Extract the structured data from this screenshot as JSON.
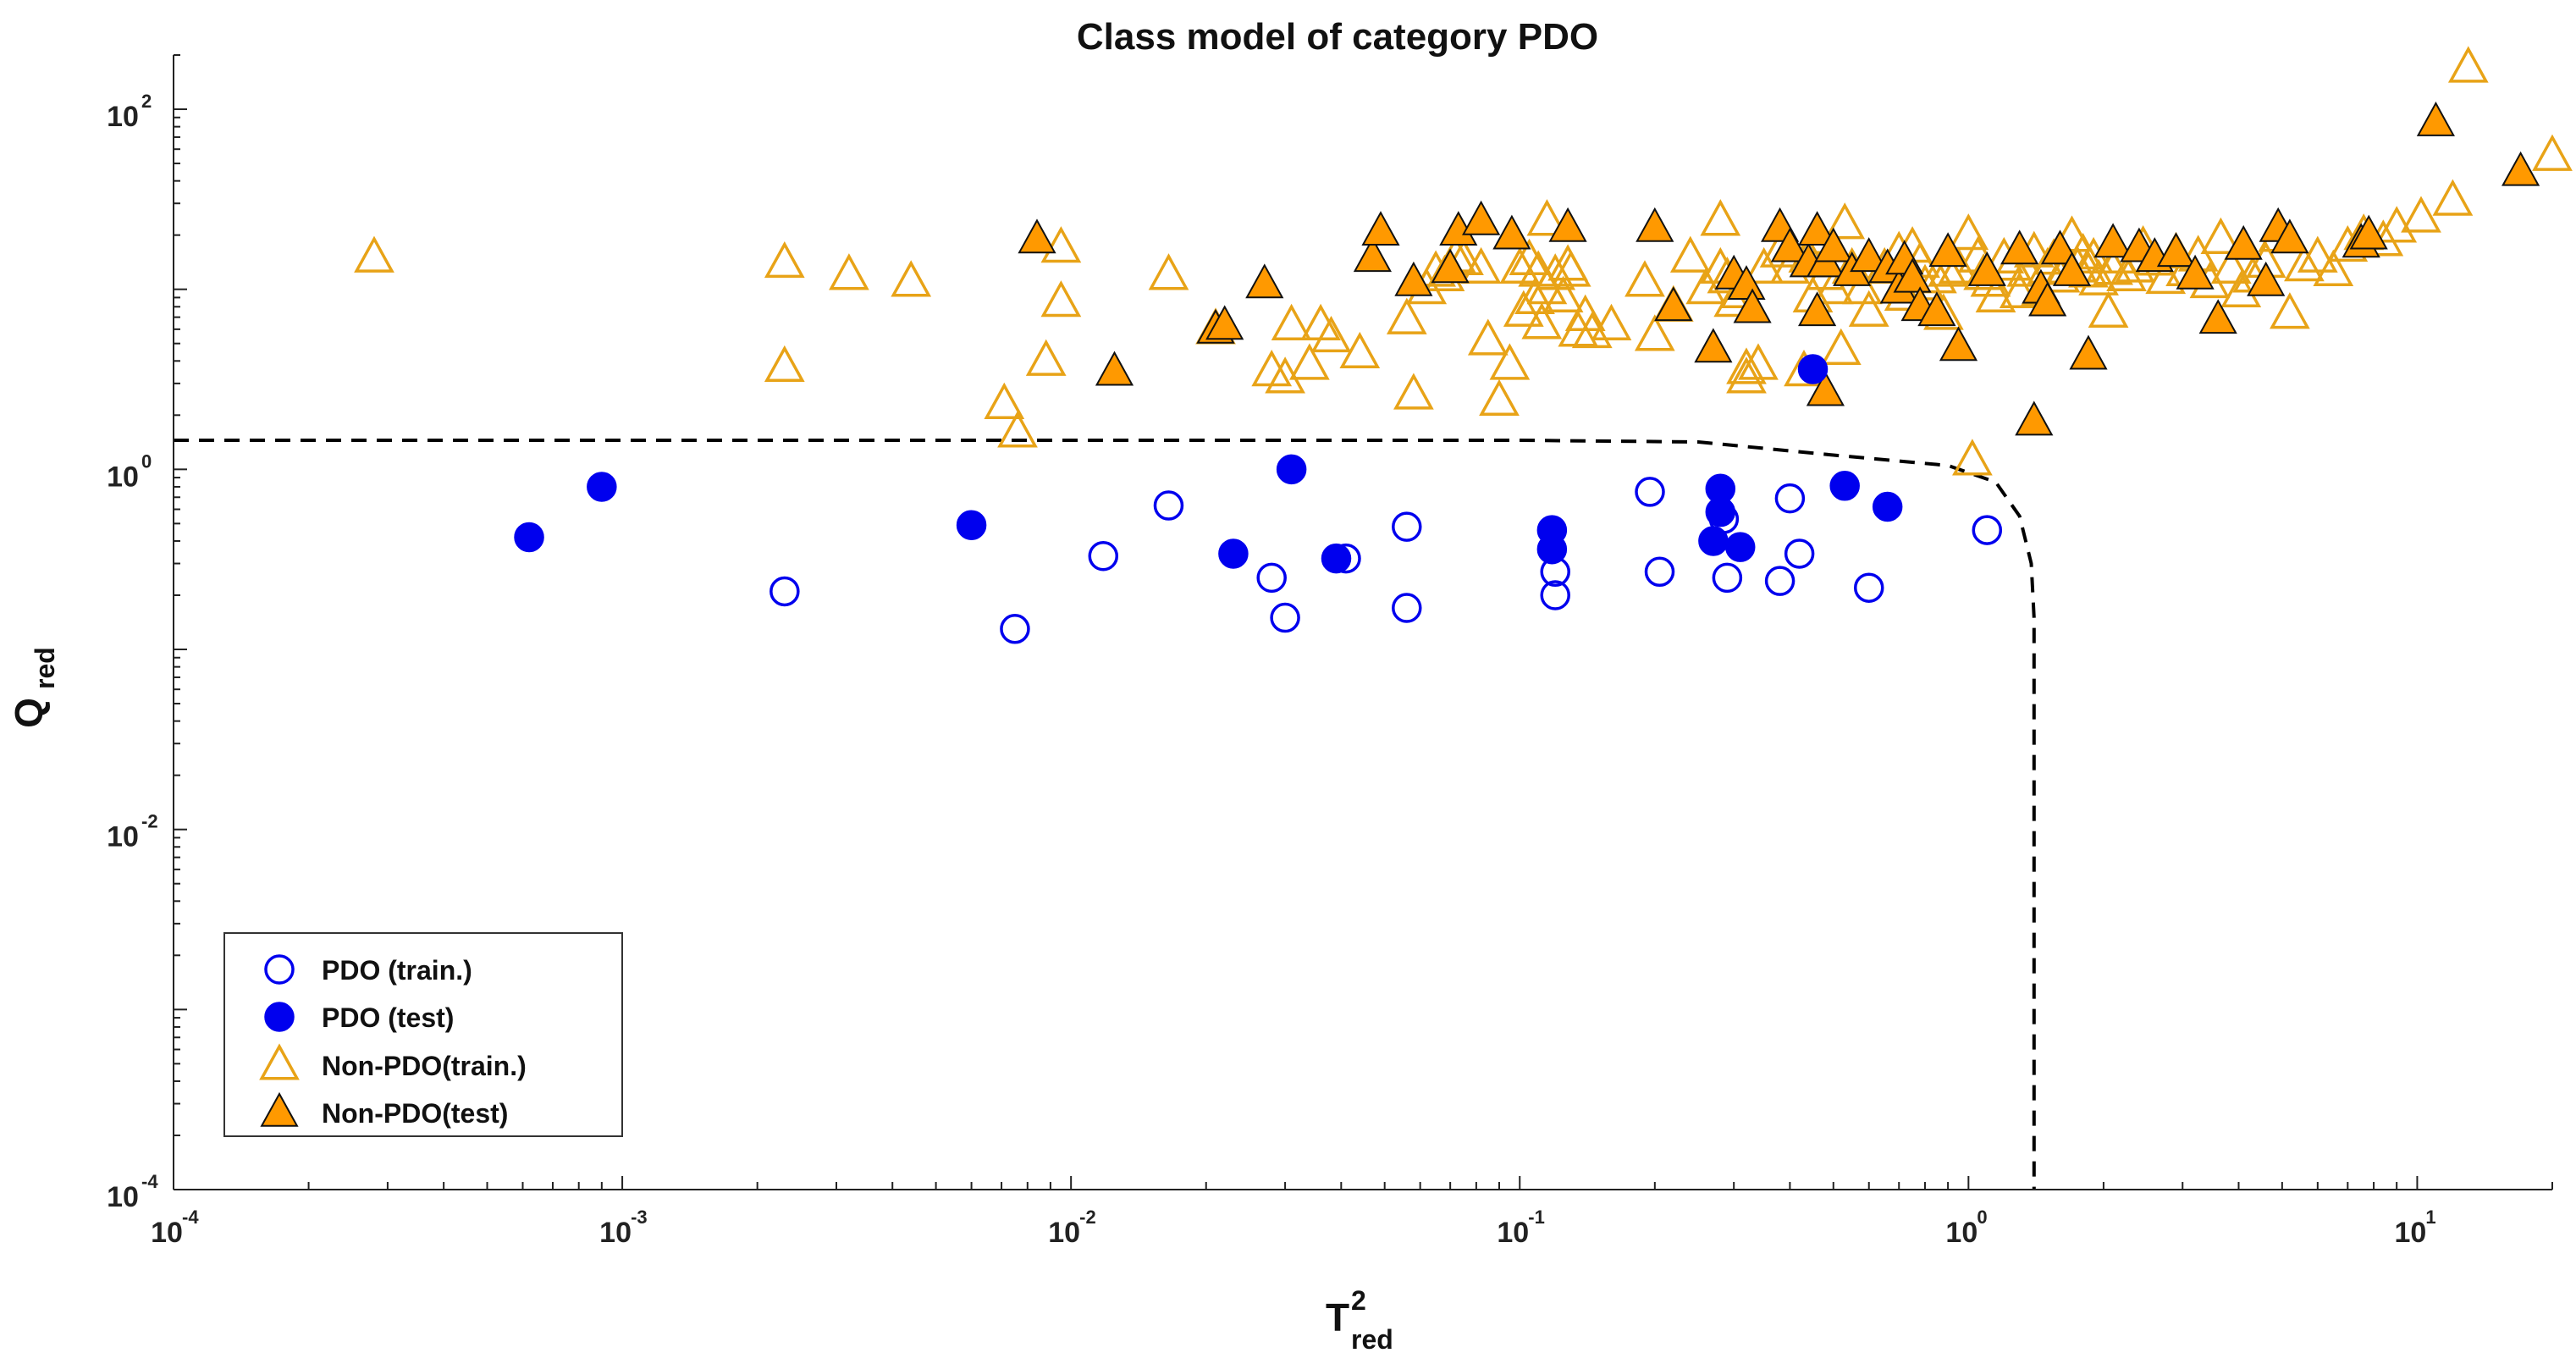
{
  "chart_data": {
    "type": "scatter",
    "title": "Class model of category PDO",
    "xlabel": {
      "main": "T",
      "sup": "2",
      "sub": "red"
    },
    "ylabel": {
      "main": "Q",
      "sub": "red"
    },
    "xscale": "log",
    "yscale": "log",
    "xlim": [
      0.0001,
      20
    ],
    "ylim": [
      0.0001,
      200
    ],
    "xticks": [
      {
        "base": "10",
        "exp": "-4",
        "v": 0.0001
      },
      {
        "base": "10",
        "exp": "-3",
        "v": 0.001
      },
      {
        "base": "10",
        "exp": "-2",
        "v": 0.01
      },
      {
        "base": "10",
        "exp": "-1",
        "v": 0.1
      },
      {
        "base": "10",
        "exp": "0",
        "v": 1
      },
      {
        "base": "10",
        "exp": "1",
        "v": 10
      }
    ],
    "yticks": [
      {
        "base": "10",
        "exp": "-4",
        "v": 0.0001
      },
      {
        "base": "10",
        "exp": "-2",
        "v": 0.01
      },
      {
        "base": "10",
        "exp": "0",
        "v": 1
      },
      {
        "base": "10",
        "exp": "2",
        "v": 100
      }
    ],
    "legend_position": "bottom-left",
    "colors": {
      "pdo": "#0000ee",
      "nonpdo": "#e8a317",
      "nonpdo_fill": "#ff9900",
      "boundary": "#000000"
    },
    "boundary": [
      [
        0.0001,
        1.45
      ],
      [
        0.1,
        1.45
      ],
      [
        0.25,
        1.42
      ],
      [
        0.5,
        1.2
      ],
      [
        0.9,
        1.05
      ],
      [
        1.15,
        0.85
      ],
      [
        1.3,
        0.55
      ],
      [
        1.38,
        0.3
      ],
      [
        1.4,
        0.15
      ],
      [
        1.4,
        0.0001
      ]
    ],
    "series": [
      {
        "name": "PDO (train.)",
        "marker": "circle",
        "filled": false,
        "points": [
          [
            0.0023,
            0.21
          ],
          [
            0.0075,
            0.13
          ],
          [
            0.0118,
            0.33
          ],
          [
            0.0165,
            0.63
          ],
          [
            0.028,
            0.25
          ],
          [
            0.03,
            0.15
          ],
          [
            0.041,
            0.32
          ],
          [
            0.056,
            0.17
          ],
          [
            0.056,
            0.48
          ],
          [
            0.12,
            0.27
          ],
          [
            0.12,
            0.2
          ],
          [
            0.205,
            0.27
          ],
          [
            0.195,
            0.75
          ],
          [
            0.285,
            0.53
          ],
          [
            0.29,
            0.25
          ],
          [
            0.38,
            0.24
          ],
          [
            0.4,
            0.69
          ],
          [
            0.42,
            0.34
          ],
          [
            0.6,
            0.22
          ],
          [
            1.1,
            0.46
          ]
        ]
      },
      {
        "name": "PDO (test)",
        "marker": "circle",
        "filled": true,
        "points": [
          [
            0.00062,
            0.42
          ],
          [
            0.0009,
            0.8
          ],
          [
            0.006,
            0.49
          ],
          [
            0.023,
            0.34
          ],
          [
            0.031,
            1.0
          ],
          [
            0.039,
            0.32
          ],
          [
            0.118,
            0.46
          ],
          [
            0.118,
            0.36
          ],
          [
            0.27,
            0.4
          ],
          [
            0.28,
            0.58
          ],
          [
            0.28,
            0.78
          ],
          [
            0.31,
            0.37
          ],
          [
            0.53,
            0.81
          ],
          [
            0.66,
            0.62
          ],
          [
            0.45,
            3.6
          ]
        ]
      },
      {
        "name": "Non-PDO(train.)",
        "marker": "triangle",
        "filled": false,
        "points": [
          [
            0.00028,
            15
          ],
          [
            0.0023,
            14
          ],
          [
            0.0023,
            3.7
          ],
          [
            0.0032,
            12
          ],
          [
            0.0044,
            11
          ],
          [
            0.0071,
            2.3
          ],
          [
            0.0076,
            1.6
          ],
          [
            0.0088,
            4
          ],
          [
            0.0095,
            8.5
          ],
          [
            0.0095,
            17
          ],
          [
            0.0165,
            12
          ],
          [
            0.021,
            6
          ],
          [
            0.028,
            3.5
          ],
          [
            0.03,
            3.2
          ],
          [
            0.031,
            6.3
          ],
          [
            0.034,
            3.8
          ],
          [
            0.036,
            6.3
          ],
          [
            0.038,
            5.4
          ],
          [
            0.044,
            4.4
          ],
          [
            0.056,
            6.8
          ],
          [
            0.058,
            2.6
          ],
          [
            0.062,
            10
          ],
          [
            0.065,
            12.5
          ],
          [
            0.068,
            11.8
          ],
          [
            0.072,
            15
          ],
          [
            0.075,
            14.5
          ],
          [
            0.082,
            13
          ],
          [
            0.085,
            5.2
          ],
          [
            0.09,
            2.4
          ],
          [
            0.095,
            3.8
          ],
          [
            0.1,
            13
          ],
          [
            0.102,
            7.5
          ],
          [
            0.105,
            14.5
          ],
          [
            0.108,
            8.8
          ],
          [
            0.11,
            12.5
          ],
          [
            0.112,
            6.4
          ],
          [
            0.115,
            10
          ],
          [
            0.115,
            24
          ],
          [
            0.12,
            12
          ],
          [
            0.125,
            9
          ],
          [
            0.128,
            13.5
          ],
          [
            0.13,
            12.5
          ],
          [
            0.135,
            5.8
          ],
          [
            0.14,
            7.1
          ],
          [
            0.145,
            5.7
          ],
          [
            0.16,
            6.3
          ],
          [
            0.19,
            11
          ],
          [
            0.2,
            5.5
          ],
          [
            0.22,
            8
          ],
          [
            0.24,
            15
          ],
          [
            0.26,
            10
          ],
          [
            0.28,
            24
          ],
          [
            0.28,
            13
          ],
          [
            0.29,
            11.5
          ],
          [
            0.3,
            8.5
          ],
          [
            0.31,
            9.5
          ],
          [
            0.32,
            3.6
          ],
          [
            0.32,
            3.2
          ],
          [
            0.34,
            3.8
          ],
          [
            0.35,
            13
          ],
          [
            0.38,
            16
          ],
          [
            0.4,
            13
          ],
          [
            0.43,
            3.5
          ],
          [
            0.44,
            15
          ],
          [
            0.45,
            9
          ],
          [
            0.46,
            19
          ],
          [
            0.48,
            12
          ],
          [
            0.5,
            10
          ],
          [
            0.52,
            4.6
          ],
          [
            0.53,
            23
          ],
          [
            0.55,
            13
          ],
          [
            0.58,
            10
          ],
          [
            0.6,
            7.5
          ],
          [
            0.65,
            13
          ],
          [
            0.7,
            16
          ],
          [
            0.72,
            9.2
          ],
          [
            0.75,
            17
          ],
          [
            0.78,
            14
          ],
          [
            0.8,
            10.5
          ],
          [
            0.85,
            11.5
          ],
          [
            0.88,
            7.2
          ],
          [
            0.9,
            12.5
          ],
          [
            0.95,
            13
          ],
          [
            1.0,
            20
          ],
          [
            1.02,
            1.12
          ],
          [
            1.05,
            15
          ],
          [
            1.08,
            12
          ],
          [
            1.12,
            11
          ],
          [
            1.15,
            9
          ],
          [
            1.2,
            14.8
          ],
          [
            1.25,
            13.5
          ],
          [
            1.3,
            9.5
          ],
          [
            1.35,
            12.5
          ],
          [
            1.4,
            16
          ],
          [
            1.45,
            9.8
          ],
          [
            1.5,
            13
          ],
          [
            1.55,
            14.6
          ],
          [
            1.6,
            11.6
          ],
          [
            1.65,
            12.8
          ],
          [
            1.7,
            19.5
          ],
          [
            1.75,
            13.2
          ],
          [
            1.8,
            15.6
          ],
          [
            1.85,
            12.4
          ],
          [
            1.9,
            14.8
          ],
          [
            1.95,
            11.2
          ],
          [
            2.05,
            7.4
          ],
          [
            2.1,
            12.8
          ],
          [
            2.15,
            14.8
          ],
          [
            2.25,
            11.8
          ],
          [
            2.35,
            13.2
          ],
          [
            2.45,
            17.2
          ],
          [
            2.6,
            14.4
          ],
          [
            2.75,
            11.4
          ],
          [
            2.9,
            15.8
          ],
          [
            3.05,
            12.6
          ],
          [
            3.25,
            15.2
          ],
          [
            3.45,
            10.8
          ],
          [
            3.65,
            19
          ],
          [
            3.85,
            13
          ],
          [
            4.05,
            9.6
          ],
          [
            4.3,
            11.6
          ],
          [
            4.6,
            14
          ],
          [
            4.9,
            19.5
          ],
          [
            5.2,
            7.3
          ],
          [
            5.6,
            13.4
          ],
          [
            6.0,
            15
          ],
          [
            6.5,
            12.6
          ],
          [
            7.0,
            17.2
          ],
          [
            7.6,
            20
          ],
          [
            8.4,
            18.5
          ],
          [
            9.0,
            22
          ],
          [
            10.2,
            25
          ],
          [
            12.0,
            31
          ],
          [
            13.0,
            170
          ],
          [
            20.0,
            55
          ]
        ]
      },
      {
        "name": "Non-PDO(test)",
        "marker": "triangle",
        "filled": true,
        "points": [
          [
            0.0084,
            19
          ],
          [
            0.0125,
            3.5
          ],
          [
            0.021,
            6
          ],
          [
            0.022,
            6.3
          ],
          [
            0.027,
            10.7
          ],
          [
            0.047,
            15
          ],
          [
            0.049,
            21
          ],
          [
            0.058,
            11
          ],
          [
            0.07,
            13
          ],
          [
            0.073,
            21
          ],
          [
            0.082,
            24
          ],
          [
            0.096,
            20
          ],
          [
            0.128,
            22
          ],
          [
            0.2,
            22
          ],
          [
            0.22,
            8
          ],
          [
            0.27,
            4.7
          ],
          [
            0.3,
            12
          ],
          [
            0.32,
            10.5
          ],
          [
            0.33,
            7.8
          ],
          [
            0.38,
            22
          ],
          [
            0.4,
            17
          ],
          [
            0.44,
            14
          ],
          [
            0.46,
            21
          ],
          [
            0.48,
            14
          ],
          [
            0.46,
            7.5
          ],
          [
            0.48,
            2.7
          ],
          [
            0.5,
            17
          ],
          [
            0.55,
            12.5
          ],
          [
            0.6,
            15
          ],
          [
            0.66,
            13
          ],
          [
            0.7,
            10
          ],
          [
            0.72,
            14.5
          ],
          [
            0.75,
            11.5
          ],
          [
            0.78,
            8
          ],
          [
            0.85,
            7.5
          ],
          [
            0.9,
            16
          ],
          [
            0.95,
            4.8
          ],
          [
            1.1,
            12.5
          ],
          [
            1.3,
            16.5
          ],
          [
            1.4,
            1.85
          ],
          [
            1.45,
            10
          ],
          [
            1.5,
            8.5
          ],
          [
            1.6,
            16.5
          ],
          [
            1.7,
            12.5
          ],
          [
            1.85,
            4.3
          ],
          [
            2.1,
            18
          ],
          [
            2.4,
            17
          ],
          [
            2.6,
            15
          ],
          [
            2.9,
            16
          ],
          [
            3.2,
            12
          ],
          [
            3.6,
            6.8
          ],
          [
            4.1,
            17.5
          ],
          [
            4.6,
            11
          ],
          [
            4.9,
            22
          ],
          [
            5.2,
            19
          ],
          [
            7.5,
            18
          ],
          [
            7.8,
            20
          ],
          [
            11.0,
            85
          ],
          [
            17.0,
            45
          ]
        ]
      }
    ]
  }
}
